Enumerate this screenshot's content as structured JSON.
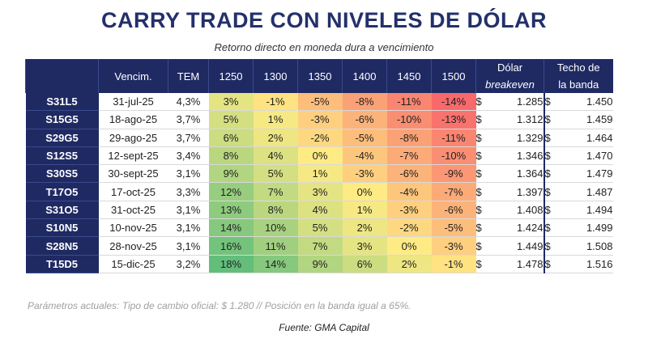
{
  "title": "CARRY TRADE CON NIVELES DE DÓLAR",
  "subtitle": "Retorno directo en moneda dura a vencimiento",
  "columns": {
    "bond": "",
    "vencim": "Vencim.",
    "tem": "TEM",
    "levels": [
      "1250",
      "1300",
      "1350",
      "1400",
      "1450",
      "1500"
    ],
    "breakeven_line1": "Dólar",
    "breakeven_line2": "breakeven",
    "techo_line1": "Techo de",
    "techo_line2": "la banda"
  },
  "currency_symbol": "$",
  "rows": [
    {
      "bond": "S31L5",
      "vencim": "31-jul-25",
      "tem": "4,3%",
      "returns": [
        "3%",
        "-1%",
        "-5%",
        "-8%",
        "-11%",
        "-14%"
      ],
      "values": [
        3,
        -1,
        -5,
        -8,
        -11,
        -14
      ],
      "breakeven": "1.285",
      "techo": "1.450"
    },
    {
      "bond": "S15G5",
      "vencim": "18-ago-25",
      "tem": "3,7%",
      "returns": [
        "5%",
        "1%",
        "-3%",
        "-6%",
        "-10%",
        "-13%"
      ],
      "values": [
        5,
        1,
        -3,
        -6,
        -10,
        -13
      ],
      "breakeven": "1.312",
      "techo": "1.459"
    },
    {
      "bond": "S29G5",
      "vencim": "29-ago-25",
      "tem": "3,7%",
      "returns": [
        "6%",
        "2%",
        "-2%",
        "-5%",
        "-8%",
        "-11%"
      ],
      "values": [
        6,
        2,
        -2,
        -5,
        -8,
        -11
      ],
      "breakeven": "1.329",
      "techo": "1.464"
    },
    {
      "bond": "S12S5",
      "vencim": "12-sept-25",
      "tem": "3,4%",
      "returns": [
        "8%",
        "4%",
        "0%",
        "-4%",
        "-7%",
        "-10%"
      ],
      "values": [
        8,
        4,
        0,
        -4,
        -7,
        -10
      ],
      "breakeven": "1.346",
      "techo": "1.470"
    },
    {
      "bond": "S30S5",
      "vencim": "30-sept-25",
      "tem": "3,1%",
      "returns": [
        "9%",
        "5%",
        "1%",
        "-3%",
        "-6%",
        "-9%"
      ],
      "values": [
        9,
        5,
        1,
        -3,
        -6,
        -9
      ],
      "breakeven": "1.364",
      "techo": "1.479"
    },
    {
      "bond": "T17O5",
      "vencim": "17-oct-25",
      "tem": "3,3%",
      "returns": [
        "12%",
        "7%",
        "3%",
        "0%",
        "-4%",
        "-7%"
      ],
      "values": [
        12,
        7,
        3,
        0,
        -4,
        -7
      ],
      "breakeven": "1.397",
      "techo": "1.487"
    },
    {
      "bond": "S31O5",
      "vencim": "31-oct-25",
      "tem": "3,1%",
      "returns": [
        "13%",
        "8%",
        "4%",
        "1%",
        "-3%",
        "-6%"
      ],
      "values": [
        13,
        8,
        4,
        1,
        -3,
        -6
      ],
      "breakeven": "1.408",
      "techo": "1.494"
    },
    {
      "bond": "S10N5",
      "vencim": "10-nov-25",
      "tem": "3,1%",
      "returns": [
        "14%",
        "10%",
        "5%",
        "2%",
        "-2%",
        "-5%"
      ],
      "values": [
        14,
        10,
        5,
        2,
        -2,
        -5
      ],
      "breakeven": "1.424",
      "techo": "1.499"
    },
    {
      "bond": "S28N5",
      "vencim": "28-nov-25",
      "tem": "3,1%",
      "returns": [
        "16%",
        "11%",
        "7%",
        "3%",
        "0%",
        "-3%"
      ],
      "values": [
        16,
        11,
        7,
        3,
        0,
        -3
      ],
      "breakeven": "1.449",
      "techo": "1.508"
    },
    {
      "bond": "T15D5",
      "vencim": "15-dic-25",
      "tem": "3,2%",
      "returns": [
        "18%",
        "14%",
        "9%",
        "6%",
        "2%",
        "-1%"
      ],
      "values": [
        18,
        14,
        9,
        6,
        2,
        -1
      ],
      "breakeven": "1.478",
      "techo": "1.516"
    }
  ],
  "heatmap_colors": {
    "low": "#f8696b",
    "mid": "#ffeb84",
    "high": "#63be7b"
  },
  "header_color": "#1f2a63",
  "title_color": "#23306b",
  "note": "Parámetros actuales: Tipo de cambio oficial: $ 1.280 //  Posición en la banda igual a 65%.",
  "source": "Fuente: GMA Capital"
}
